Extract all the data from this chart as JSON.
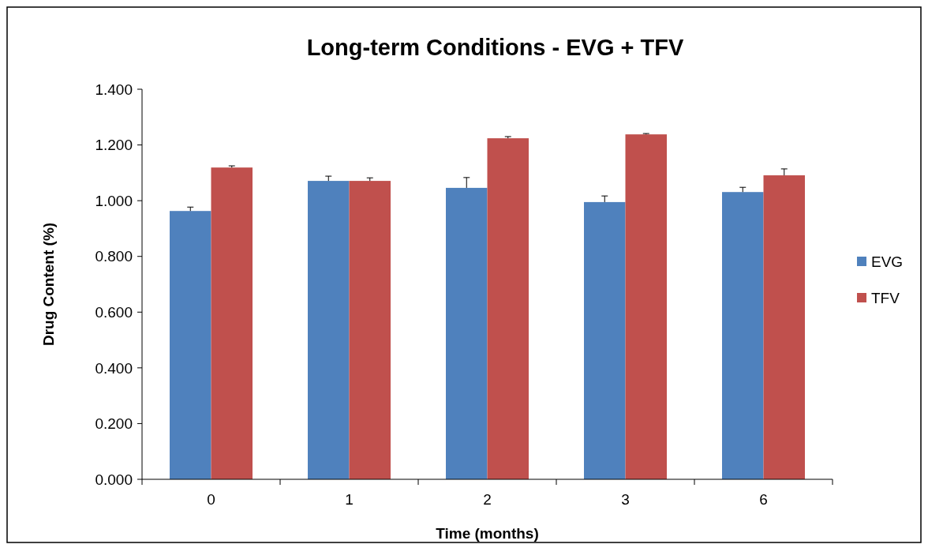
{
  "chart_data": {
    "type": "bar",
    "title": "Long-term Conditions - EVG + TFV",
    "xlabel": "Time (months)",
    "ylabel": "Drug Content (%)",
    "categories": [
      "0",
      "1",
      "2",
      "3",
      "6"
    ],
    "series": [
      {
        "name": "EVG",
        "color": "#4f81bd",
        "values": [
          0.963,
          1.071,
          1.046,
          0.995,
          1.031
        ],
        "errors": [
          [
            0.963,
            0.977
          ],
          [
            1.071,
            1.088
          ],
          [
            1.046,
            1.083
          ],
          [
            0.995,
            1.017
          ],
          [
            1.031,
            1.048
          ]
        ]
      },
      {
        "name": "TFV",
        "color": "#c0504d",
        "values": [
          1.119,
          1.071,
          1.224,
          1.238,
          1.091
        ],
        "errors": [
          [
            1.119,
            1.125
          ],
          [
            1.071,
            1.082
          ],
          [
            1.224,
            1.23
          ],
          [
            1.238,
            1.241
          ],
          [
            1.091,
            1.114
          ]
        ]
      }
    ],
    "ylim": [
      0,
      1.4
    ],
    "yticks": [
      {
        "value": 0,
        "label": "0.000"
      },
      {
        "value": 0.2,
        "label": "0.200"
      },
      {
        "value": 0.4,
        "label": "0.400"
      },
      {
        "value": 0.6,
        "label": "0.600"
      },
      {
        "value": 0.8,
        "label": "0.800"
      },
      {
        "value": 1,
        "label": "1.000"
      },
      {
        "value": 1.2,
        "label": "1.200"
      },
      {
        "value": 1.4,
        "label": "1.400"
      }
    ],
    "grid": false,
    "legend": "right"
  }
}
